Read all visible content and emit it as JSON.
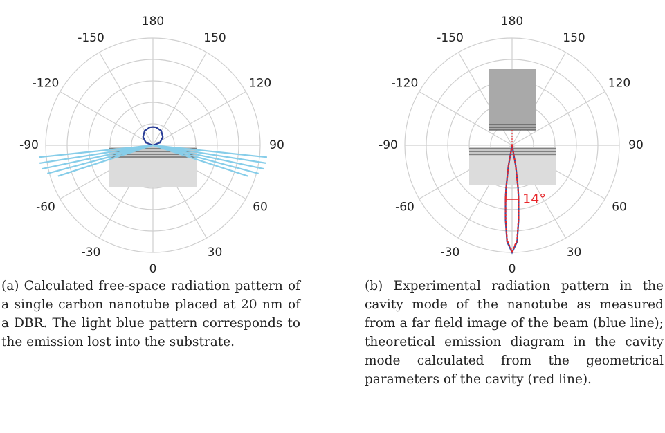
{
  "chart_data": [
    {
      "type": "polar",
      "thetaticks": [
        0,
        30,
        60,
        90,
        120,
        150,
        180,
        -150,
        -120,
        -90,
        -60,
        -30
      ],
      "rlim": [
        0,
        1
      ],
      "grid": true,
      "series": [
        {
          "color": "#2b3f98",
          "theta": [
            90,
            110,
            130,
            150,
            170,
            180,
            190,
            210,
            230,
            250,
            270
          ],
          "r": [
            0,
            0.07,
            0.12,
            0.155,
            0.17,
            0.17,
            0.17,
            0.155,
            0.12,
            0.07,
            0
          ]
        },
        {
          "color": "#86cde9",
          "theta": [
            -84,
            -84,
            -81,
            -81,
            -78,
            -78,
            -75,
            -75,
            -72,
            -72
          ],
          "r": [
            0,
            1.07,
            0,
            1.07,
            0,
            1.06,
            0,
            1.02,
            0,
            0.93
          ]
        },
        {
          "color": "#86cde9",
          "theta": [
            84,
            84,
            81,
            81,
            78,
            78,
            75,
            75,
            72,
            72
          ],
          "r": [
            0,
            1.07,
            0,
            1.07,
            0,
            1.06,
            0,
            1.02,
            0,
            0.93
          ]
        }
      ]
    },
    {
      "type": "polar",
      "thetaticks": [
        0,
        30,
        60,
        90,
        120,
        150,
        180,
        -150,
        -120,
        -90,
        -60,
        -30
      ],
      "rlim": [
        0,
        1
      ],
      "grid": true,
      "annotation": "14°",
      "series": [
        {
          "color": "#3a4fa0",
          "theta": [
            -90,
            -10,
            -8,
            -7,
            -5,
            -3,
            0,
            3,
            5,
            7,
            8,
            10,
            90
          ],
          "r": [
            0,
            0.2,
            0.4,
            0.5,
            0.7,
            0.9,
            1,
            0.9,
            0.7,
            0.5,
            0.4,
            0.2,
            0
          ]
        },
        {
          "color": "#e8262a",
          "theta": [
            -90,
            -10,
            -8,
            -7,
            -5,
            -3,
            0,
            3,
            5,
            7,
            8,
            10,
            90
          ],
          "r": [
            0,
            0.19,
            0.39,
            0.5,
            0.69,
            0.89,
            0.99,
            0.89,
            0.69,
            0.5,
            0.39,
            0.19,
            0
          ]
        }
      ]
    }
  ],
  "captions": [
    {
      "label": "(a)",
      "text": "Calculated free-space radiation pattern of a single carbon nanotube placed at 20 nm of a DBR. The light blue pattern corresponds to the emission lost into the substrate."
    },
    {
      "label": "(b)",
      "text": "Experimental radiation pattern in the cavity mode of the nanotube as measured from a far field image of the beam (blue line); theoretical emission diagram in the cavity mode calculated from the geometrical parameters of the cavity (red line)."
    }
  ]
}
